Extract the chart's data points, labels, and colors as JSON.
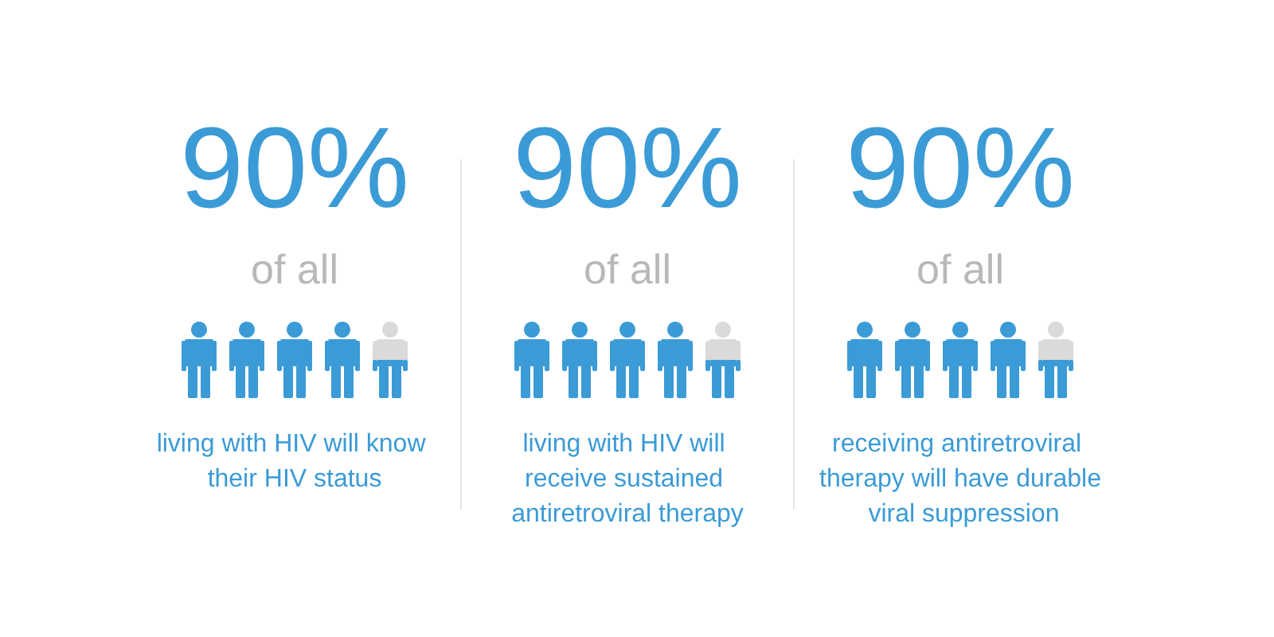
{
  "chart_data": [
    {
      "type": "other",
      "values": [
        90
      ],
      "value_labels": [
        "90%"
      ],
      "subtitle": "of all",
      "annotations": [
        "living with HIV will know their HIV status"
      ],
      "color": "#3b9bd6"
    },
    {
      "type": "other",
      "values": [
        90
      ],
      "value_labels": [
        "90%"
      ],
      "subtitle": "of all",
      "annotations": [
        "living with HIV will receive sustained antiretroviral therapy"
      ],
      "color": "#3b9bd6"
    },
    {
      "type": "other",
      "values": [
        90
      ],
      "value_labels": [
        "90%"
      ],
      "subtitle": "of all",
      "annotations": [
        "receiving antiretroviral therapy will have durable viral suppression"
      ],
      "color": "#3b9bd6"
    }
  ]
}
